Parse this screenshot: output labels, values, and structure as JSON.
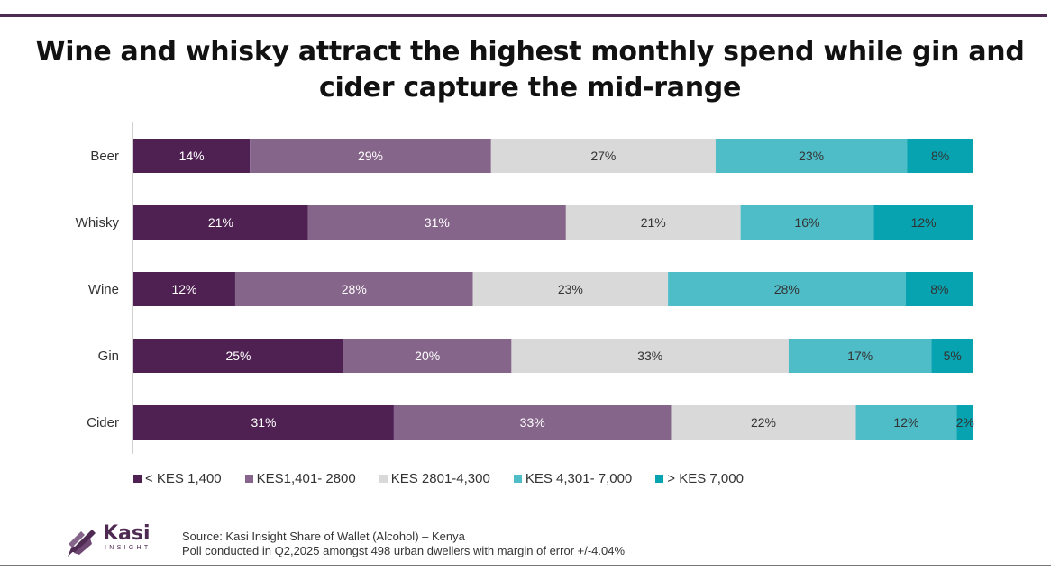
{
  "title": "Wine and whisky attract the highest monthly spend while gin and cider capture the mid-range",
  "chart_data": {
    "type": "bar",
    "orientation": "horizontal",
    "stacked": true,
    "percent": true,
    "categories": [
      "Beer",
      "Whisky",
      "Wine",
      "Gin",
      "Cider"
    ],
    "series": [
      {
        "name": "< KES 1,400",
        "color": "#4f2152",
        "values": [
          14,
          21,
          12,
          25,
          31
        ],
        "labels": [
          "14%",
          "21%",
          "12%",
          "25%",
          "31%"
        ]
      },
      {
        "name": "KES1,401- 2800",
        "color": "#86658a",
        "values": [
          29,
          31,
          28,
          20,
          33
        ],
        "labels": [
          "29%",
          "31%",
          "28%",
          "20%",
          "33%"
        ]
      },
      {
        "name": "KES 2801-4,300",
        "color": "#d9d9d9",
        "values": [
          27,
          21,
          23,
          33,
          22
        ],
        "labels": [
          "27%",
          "21%",
          "23%",
          "33%",
          "22%"
        ]
      },
      {
        "name": "KES 4,301- 7,000",
        "color": "#4fbdc8",
        "values": [
          23,
          16,
          28,
          17,
          12
        ],
        "labels": [
          "23%",
          "16%",
          "28%",
          "17%",
          "12%"
        ]
      },
      {
        "name": "> KES 7,000",
        "color": "#07a3b0",
        "values": [
          8,
          12,
          8,
          5,
          2
        ],
        "labels": [
          "8%",
          "12%",
          "8%",
          "5%",
          "2%"
        ]
      }
    ],
    "xlim": [
      0,
      100
    ],
    "legend_position": "bottom",
    "grid": false
  },
  "logo": {
    "name": "Kasi",
    "sub": "INSIGHT"
  },
  "source": {
    "line1": "Source: Kasi Insight Share of Wallet (Alcohol) – Kenya",
    "line2": "Poll conducted in Q2,2025 amongst  498 urban dwellers with margin of error +/-4.04%"
  }
}
